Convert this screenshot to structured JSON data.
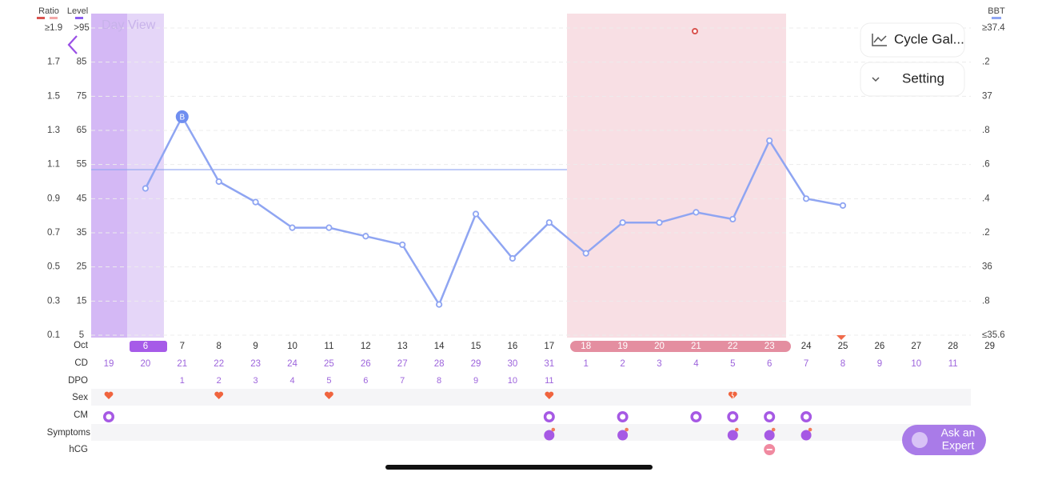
{
  "app": {
    "day_view": "Day View",
    "cycle_gallery": "Cycle Gal...",
    "setting": "Setting",
    "ask_expert": [
      "Ask an",
      "Expert"
    ]
  },
  "rows": {
    "month": "Oct",
    "cd": "CD",
    "dpo": "DPO",
    "sex": "Sex",
    "cm": "CM",
    "symptoms": "Symptoms",
    "hcg": "hCG"
  },
  "chart_data": {
    "type": "line",
    "legend": {
      "ratio": "Ratio",
      "level": "Level"
    },
    "categories": [
      null,
      "6",
      "7",
      "8",
      "9",
      "10",
      "11",
      "12",
      "13",
      "14",
      "15",
      "16",
      "17",
      "18",
      "19",
      "20",
      "21",
      "22",
      "23",
      "24",
      "25",
      "26",
      "27",
      "28",
      "29"
    ],
    "cd": [
      19,
      20,
      21,
      22,
      23,
      24,
      25,
      26,
      27,
      28,
      29,
      30,
      31,
      1,
      2,
      3,
      4,
      5,
      6,
      7,
      8,
      9,
      10,
      11,
      null
    ],
    "dpo": [
      null,
      null,
      1,
      2,
      3,
      4,
      5,
      6,
      7,
      8,
      9,
      10,
      11,
      null,
      null,
      null,
      null,
      null,
      null,
      null,
      null,
      null,
      null,
      null,
      null
    ],
    "series": [
      {
        "name": "BBT",
        "color": "#8fa5f2",
        "values": [
          null,
          36.46,
          36.88,
          36.5,
          36.38,
          36.23,
          36.23,
          36.18,
          36.13,
          35.78,
          36.31,
          36.05,
          36.26,
          36.08,
          36.26,
          36.26,
          36.32,
          36.28,
          36.74,
          36.4,
          36.36,
          null,
          null,
          null,
          null
        ]
      }
    ],
    "annotation": "B",
    "cover_line": 36.57,
    "ylim": [
      35.6,
      37.4
    ],
    "yticks": [
      {
        "value": 35.6,
        "label": "≤35.6"
      },
      {
        "value": 35.8,
        "label": ".8"
      },
      36,
      {
        "value": 36.2,
        "label": ".2"
      },
      {
        "value": 36.4,
        "label": ".4"
      },
      {
        "value": 36.6,
        "label": ".6"
      },
      {
        "value": 36.8,
        "label": ".8"
      },
      37,
      {
        "value": 37.2,
        "label": ".2"
      },
      {
        "value": 37.4,
        "label": "≥37.4"
      }
    ],
    "ratio_lim": [
      0.1,
      1.9
    ],
    "ratio_ticks": [
      0.1,
      0.3,
      0.5,
      0.7,
      0.9,
      1.1,
      1.3,
      1.5,
      1.7,
      {
        "value": 1.9,
        "label": "≥1.9"
      }
    ],
    "level_lim": [
      5,
      95
    ],
    "level_ticks": [
      5,
      15,
      25,
      35,
      45,
      55,
      65,
      75,
      85,
      {
        "value": 95,
        "label": ">95"
      }
    ],
    "grid": true
  }
}
